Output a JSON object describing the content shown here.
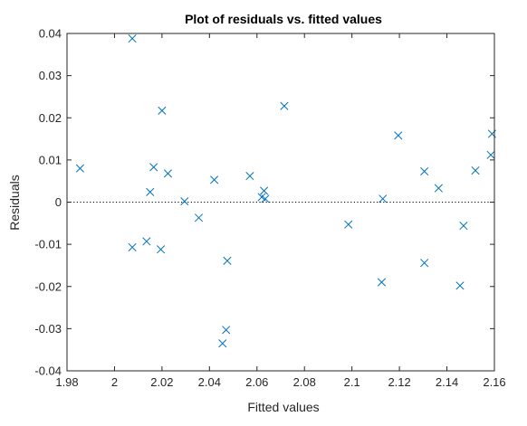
{
  "chart_data": {
    "type": "scatter",
    "title": "Plot of residuals vs. fitted values",
    "xlabel": "Fitted values",
    "ylabel": "Residuals",
    "xlim": [
      1.98,
      2.16
    ],
    "ylim": [
      -0.04,
      0.04
    ],
    "x_ticks": [
      1.98,
      2.0,
      2.02,
      2.04,
      2.06,
      2.08,
      2.1,
      2.12,
      2.14,
      2.16
    ],
    "x_tick_labels": [
      "1.98",
      "2",
      "2.02",
      "2.04",
      "2.06",
      "2.08",
      "2.1",
      "2.12",
      "2.14",
      "2.16"
    ],
    "y_ticks": [
      -0.04,
      -0.03,
      -0.02,
      -0.01,
      0,
      0.01,
      0.02,
      0.03,
      0.04
    ],
    "y_tick_labels": [
      "-0.04",
      "-0.03",
      "-0.02",
      "-0.01",
      "0",
      "0.01",
      "0.02",
      "0.03",
      "0.04"
    ],
    "grid": false,
    "reference_line": {
      "y": 0,
      "style": "dotted",
      "color": "#000000"
    },
    "marker": "x",
    "marker_color": "#0072BD",
    "points": [
      {
        "x": 1.9855,
        "y": 0.008
      },
      {
        "x": 2.0075,
        "y": 0.0388
      },
      {
        "x": 2.0075,
        "y": -0.0107
      },
      {
        "x": 2.0135,
        "y": -0.0093
      },
      {
        "x": 2.015,
        "y": 0.0024
      },
      {
        "x": 2.0165,
        "y": 0.0083
      },
      {
        "x": 2.0195,
        "y": -0.0112
      },
      {
        "x": 2.02,
        "y": 0.0217
      },
      {
        "x": 2.0225,
        "y": 0.0068
      },
      {
        "x": 2.0295,
        "y": 0.0002
      },
      {
        "x": 2.0355,
        "y": -0.0037
      },
      {
        "x": 2.042,
        "y": 0.0053
      },
      {
        "x": 2.0455,
        "y": -0.0335
      },
      {
        "x": 2.047,
        "y": -0.0303
      },
      {
        "x": 2.0475,
        "y": -0.0139
      },
      {
        "x": 2.057,
        "y": 0.0062
      },
      {
        "x": 2.062,
        "y": 0.0012
      },
      {
        "x": 2.063,
        "y": 0.0027
      },
      {
        "x": 2.0635,
        "y": 0.0008
      },
      {
        "x": 2.0715,
        "y": 0.0228
      },
      {
        "x": 2.0985,
        "y": -0.0053
      },
      {
        "x": 2.1125,
        "y": -0.019
      },
      {
        "x": 2.113,
        "y": 0.0008
      },
      {
        "x": 2.1195,
        "y": 0.0158
      },
      {
        "x": 2.1305,
        "y": 0.0073
      },
      {
        "x": 2.1305,
        "y": -0.0144
      },
      {
        "x": 2.1365,
        "y": 0.0033
      },
      {
        "x": 2.1455,
        "y": -0.0198
      },
      {
        "x": 2.147,
        "y": -0.0056
      },
      {
        "x": 2.152,
        "y": 0.0075
      },
      {
        "x": 2.1585,
        "y": 0.0112
      },
      {
        "x": 2.159,
        "y": 0.0162
      }
    ]
  }
}
